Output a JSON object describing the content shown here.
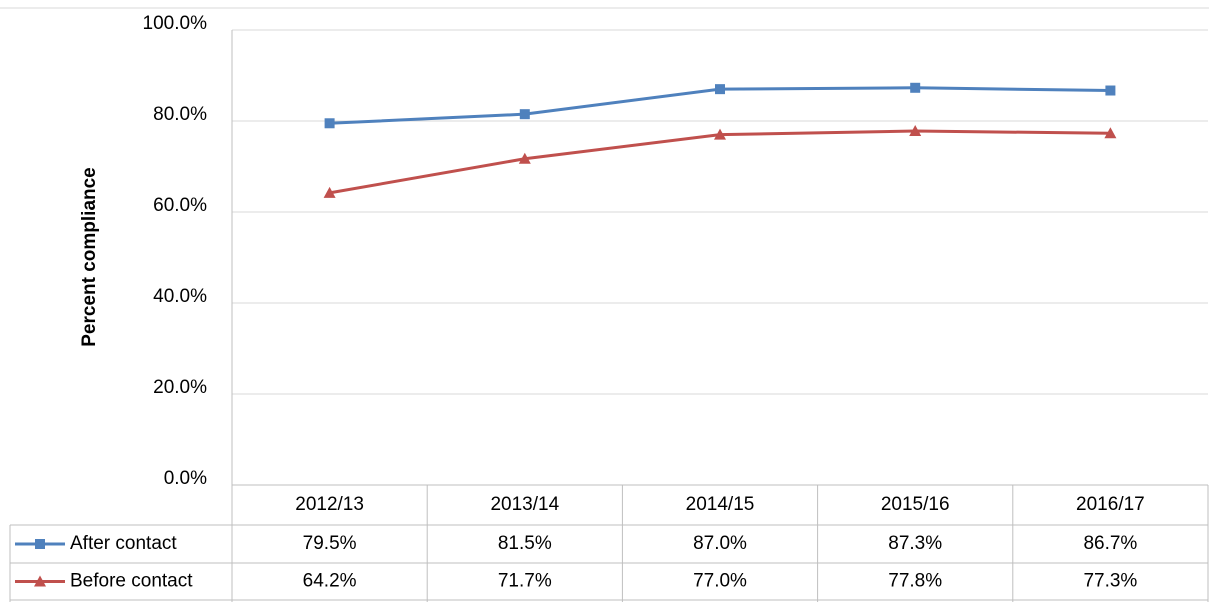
{
  "chart_data": {
    "type": "line",
    "ylabel": "Percent compliance",
    "categories": [
      "2012/13",
      "2013/14",
      "2014/15",
      "2015/16",
      "2016/17"
    ],
    "series": [
      {
        "name": "After contact",
        "color": "#4f81bd",
        "marker": "square",
        "values": [
          79.5,
          81.5,
          87.0,
          87.3,
          86.7
        ],
        "value_labels": [
          "79.5%",
          "81.5%",
          "87.0%",
          "87.3%",
          "86.7%"
        ]
      },
      {
        "name": "Before contact",
        "color": "#c0504d",
        "marker": "triangle",
        "values": [
          64.2,
          71.7,
          77.0,
          77.8,
          77.3
        ],
        "value_labels": [
          "64.2%",
          "71.7%",
          "77.0%",
          "77.8%",
          "77.3%"
        ]
      }
    ],
    "ylim": [
      0,
      100
    ],
    "yticks": [
      {
        "value": 0,
        "label": "0.0%"
      },
      {
        "value": 20,
        "label": "20.0%"
      },
      {
        "value": 40,
        "label": "40.0%"
      },
      {
        "value": 60,
        "label": "60.0%"
      },
      {
        "value": 80,
        "label": "80.0%"
      },
      {
        "value": 100,
        "label": "100.0%"
      }
    ],
    "grid": true,
    "data_table": true
  }
}
